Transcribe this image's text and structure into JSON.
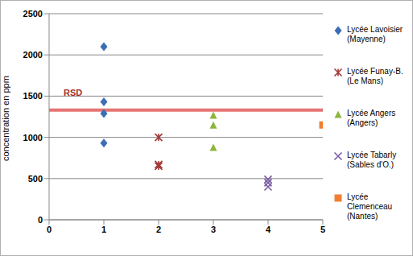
{
  "chart_data": {
    "type": "scatter",
    "y_label": "concentration en ppm",
    "xlim": [
      0,
      5
    ],
    "xticks": [
      0,
      1,
      2,
      3,
      4,
      5
    ],
    "ylim": [
      0,
      2500
    ],
    "yticks": [
      0,
      500,
      1000,
      1500,
      2000,
      2500
    ],
    "grid": true,
    "legend": "right",
    "series": [
      {
        "name": "Lycée Lavoisier (Mayenne)",
        "color": "#3d6db3",
        "marker": "diamond",
        "x": [
          1,
          1,
          1,
          1
        ],
        "values": [
          2100,
          1430,
          1290,
          930
        ]
      },
      {
        "name": "Lycée Funay-B. (Le Mans)",
        "color": "#a33a3a",
        "marker": "asterisk",
        "x": [
          2,
          2,
          2
        ],
        "values": [
          1000,
          670,
          650
        ]
      },
      {
        "name": "Lycée Angers (Angers)",
        "color": "#8db63c",
        "marker": "triangle",
        "x": [
          3,
          3,
          3
        ],
        "values": [
          1270,
          1150,
          880
        ]
      },
      {
        "name": "Lycée Tabarly (Sables d'O.)",
        "color": "#7a5ca3",
        "marker": "x",
        "x": [
          4,
          4,
          4
        ],
        "values": [
          490,
          450,
          400
        ]
      },
      {
        "name": "Lycée Clemenceau (Nantes)",
        "color": "#f08030",
        "marker": "square",
        "x": [
          5
        ],
        "values": [
          1150
        ]
      }
    ],
    "annotations": [
      {
        "text": "RSD",
        "y": 1330,
        "color": "#e05a5a"
      }
    ]
  }
}
